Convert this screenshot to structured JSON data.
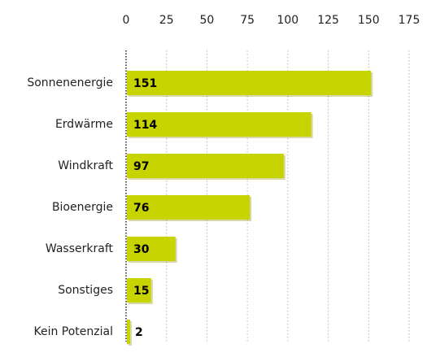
{
  "chart_data": {
    "type": "bar",
    "orientation": "horizontal",
    "title": "",
    "xlabel": "",
    "ylabel": "",
    "categories": [
      "Sonnenenergie",
      "Erdwärme",
      "Windkraft",
      "Bioenergie",
      "Wasserkraft",
      "Sonstiges",
      "Kein Potenzial"
    ],
    "values": [
      151,
      114,
      97,
      76,
      30,
      15,
      2
    ],
    "value_labels": [
      "151",
      "114",
      "97",
      "76",
      "30",
      "15",
      "2"
    ],
    "xlim": [
      0,
      175
    ],
    "x_ticks": [
      0,
      25,
      50,
      75,
      100,
      125,
      150,
      175
    ],
    "x_tick_labels": [
      "0",
      "25",
      "50",
      "75",
      "100",
      "125",
      "150",
      "175"
    ],
    "axis_position": "top",
    "grid": "vertical-dotted",
    "bar_color": "#c8d400",
    "bar_shadow_color": "#8c9000"
  }
}
